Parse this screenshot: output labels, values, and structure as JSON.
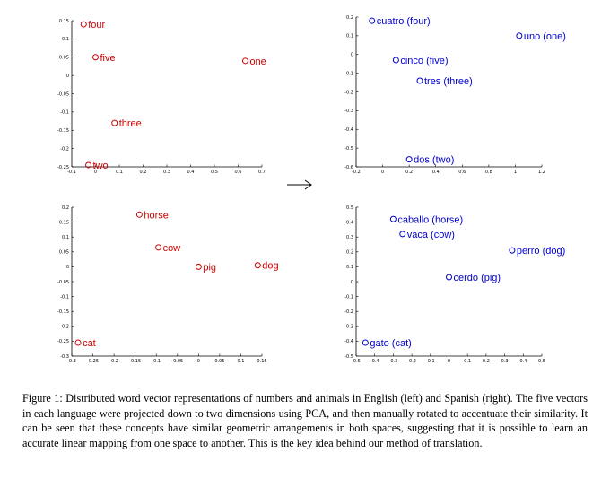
{
  "chart_data": [
    {
      "type": "scatter",
      "color": "#cc0000",
      "xlim": [
        -0.1,
        0.7
      ],
      "ylim": [
        -0.25,
        0.15
      ],
      "xticks": [
        "-0.1",
        "0",
        "0.1",
        "0.2",
        "0.3",
        "0.4",
        "0.5",
        "0.6",
        "0.7"
      ],
      "yticks": [
        "-0.25",
        "-0.2",
        "-0.15",
        "-0.1",
        "-0.05",
        "0",
        "0.05",
        "0.1",
        "0.15"
      ],
      "points": [
        {
          "label": "four",
          "x": -0.05,
          "y": 0.14
        },
        {
          "label": "five",
          "x": 0.0,
          "y": 0.05
        },
        {
          "label": "one",
          "x": 0.63,
          "y": 0.04
        },
        {
          "label": "three",
          "x": 0.08,
          "y": -0.13
        },
        {
          "label": "two",
          "x": -0.03,
          "y": -0.245
        }
      ]
    },
    {
      "type": "scatter",
      "color": "#0000cc",
      "xlim": [
        -0.2,
        1.2
      ],
      "ylim": [
        -0.6,
        0.2
      ],
      "xticks": [
        "-0.2",
        "0",
        "0.2",
        "0.4",
        "0.6",
        "0.8",
        "1",
        "1.2"
      ],
      "yticks": [
        "-0.6",
        "-0.5",
        "-0.4",
        "-0.3",
        "-0.2",
        "-0.1",
        "0",
        "0.1",
        "0.2"
      ],
      "points": [
        {
          "label": "cuatro (four)",
          "x": -0.08,
          "y": 0.18
        },
        {
          "label": "uno (one)",
          "x": 1.03,
          "y": 0.1
        },
        {
          "label": "cinco (five)",
          "x": 0.1,
          "y": -0.03
        },
        {
          "label": "tres (three)",
          "x": 0.28,
          "y": -0.14
        },
        {
          "label": "dos (two)",
          "x": 0.2,
          "y": -0.56
        }
      ]
    },
    {
      "type": "scatter",
      "color": "#cc0000",
      "xlim": [
        -0.3,
        0.15
      ],
      "ylim": [
        -0.3,
        0.2
      ],
      "xticks": [
        "-0.3",
        "-0.25",
        "-0.2",
        "-0.15",
        "-0.1",
        "-0.05",
        "0",
        "0.05",
        "0.1",
        "0.15"
      ],
      "yticks": [
        "-0.3",
        "-0.25",
        "-0.2",
        "-0.15",
        "-0.1",
        "-0.05",
        "0",
        "0.05",
        "0.1",
        "0.15",
        "0.2"
      ],
      "points": [
        {
          "label": "horse",
          "x": -0.14,
          "y": 0.175
        },
        {
          "label": "cow",
          "x": -0.095,
          "y": 0.065
        },
        {
          "label": "pig",
          "x": 0.0,
          "y": 0.0
        },
        {
          "label": "dog",
          "x": 0.14,
          "y": 0.005
        },
        {
          "label": "cat",
          "x": -0.285,
          "y": -0.255
        }
      ]
    },
    {
      "type": "scatter",
      "color": "#0000cc",
      "xlim": [
        -0.5,
        0.5
      ],
      "ylim": [
        -0.5,
        0.5
      ],
      "xticks": [
        "-0.5",
        "-0.4",
        "-0.3",
        "-0.2",
        "-0.1",
        "0",
        "0.1",
        "0.2",
        "0.3",
        "0.4",
        "0.5"
      ],
      "yticks": [
        "-0.5",
        "-0.4",
        "-0.3",
        "-0.2",
        "-0.1",
        "0",
        "0.1",
        "0.2",
        "0.3",
        "0.4",
        "0.5"
      ],
      "points": [
        {
          "label": "caballo (horse)",
          "x": -0.3,
          "y": 0.42
        },
        {
          "label": "vaca (cow)",
          "x": -0.25,
          "y": 0.32
        },
        {
          "label": "perro (dog)",
          "x": 0.34,
          "y": 0.21
        },
        {
          "label": "cerdo (pig)",
          "x": 0.0,
          "y": 0.03
        },
        {
          "label": "gato (cat)",
          "x": -0.45,
          "y": -0.41
        }
      ]
    }
  ],
  "caption": "Figure 1: Distributed word vector representations of numbers and animals in English (left) and Spanish (right). The five vectors in each language were projected down to two dimensions using PCA, and then manually rotated to accentuate their similarity. It can be seen that these concepts have similar geometric arrangements in both spaces, suggesting that it is possible to learn an accurate linear mapping from one space to another. This is the key idea behind our method of translation."
}
